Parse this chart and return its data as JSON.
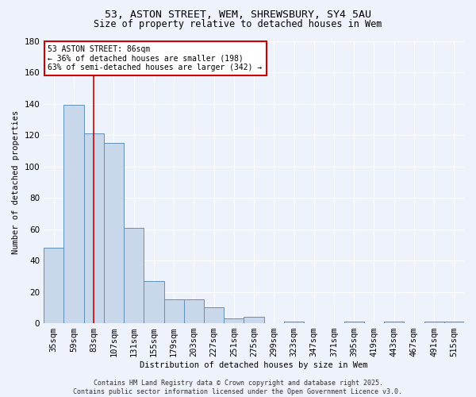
{
  "title": "53, ASTON STREET, WEM, SHREWSBURY, SY4 5AU",
  "subtitle": "Size of property relative to detached houses in Wem",
  "xlabel": "Distribution of detached houses by size in Wem",
  "ylabel": "Number of detached properties",
  "bar_color": "#c8d8ea",
  "bar_edge_color": "#6090b8",
  "background_color": "#eef2fb",
  "grid_color": "#ffffff",
  "categories": [
    "35sqm",
    "59sqm",
    "83sqm",
    "107sqm",
    "131sqm",
    "155sqm",
    "179sqm",
    "203sqm",
    "227sqm",
    "251sqm",
    "275sqm",
    "299sqm",
    "323sqm",
    "347sqm",
    "371sqm",
    "395sqm",
    "419sqm",
    "443sqm",
    "467sqm",
    "491sqm",
    "515sqm"
  ],
  "values": [
    48,
    139,
    121,
    115,
    61,
    27,
    15,
    15,
    10,
    3,
    4,
    0,
    1,
    0,
    0,
    1,
    0,
    1,
    0,
    1,
    1
  ],
  "ylim": [
    0,
    180
  ],
  "yticks": [
    0,
    20,
    40,
    60,
    80,
    100,
    120,
    140,
    160,
    180
  ],
  "red_line_x": 2,
  "annotation_text": "53 ASTON STREET: 86sqm\n← 36% of detached houses are smaller (198)\n63% of semi-detached houses are larger (342) →",
  "annotation_box_color": "#ffffff",
  "annotation_box_edge": "#cc0000",
  "red_line_color": "#cc0000",
  "footer_text": "Contains HM Land Registry data © Crown copyright and database right 2025.\nContains public sector information licensed under the Open Government Licence v3.0."
}
